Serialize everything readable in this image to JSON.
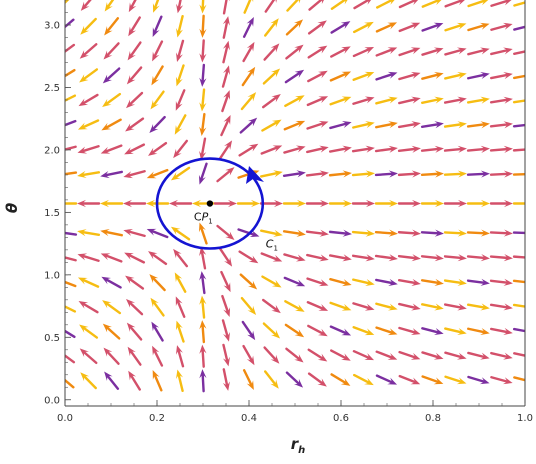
{
  "chart_data": {
    "type": "vector-field",
    "title": "",
    "xlabel_main": "r",
    "xlabel_sub": "h",
    "ylabel": "θ",
    "xlim": [
      0.0,
      1.0
    ],
    "ylim": [
      -0.05,
      3.2
    ],
    "x_ticks": [
      0.0,
      0.2,
      0.4,
      0.6,
      0.8,
      1.0
    ],
    "x_tick_labels": [
      "0.0",
      "0.2",
      "0.4",
      "0.6",
      "0.8",
      "1.0"
    ],
    "y_ticks": [
      0.0,
      0.5,
      1.0,
      1.5,
      2.0,
      2.5,
      3.0
    ],
    "y_tick_labels": [
      "0.0",
      "0.5",
      "1.0",
      "1.5",
      "2.0",
      "2.5",
      "3.0"
    ],
    "critical_point": {
      "x": 0.315,
      "theta": 1.5708,
      "label_prefix": "C",
      "label_main": "P",
      "label_sub": "1"
    },
    "contour": {
      "label_main": "C",
      "label_sub": "1",
      "center": [
        0.315,
        1.5708
      ],
      "radius_x": 0.115,
      "radius_theta": 0.36,
      "color": "#1414d2"
    },
    "field": {
      "x_samples": [
        0.0,
        0.05,
        0.1,
        0.15,
        0.2,
        0.25,
        0.3,
        0.35,
        0.4,
        0.45,
        0.5,
        0.55,
        0.6,
        0.65,
        0.7,
        0.75,
        0.8,
        0.85,
        0.9,
        0.95,
        1.0
      ],
      "theta_samples": [
        0.157,
        0.353,
        0.55,
        0.746,
        0.942,
        1.139,
        1.335,
        1.571,
        1.806,
        2.003,
        2.199,
        2.395,
        2.592,
        2.788,
        2.985,
        3.18
      ],
      "colors": [
        "#f08a10",
        "#d3506a",
        "#7b2fa0",
        "#f6bd12"
      ]
    }
  }
}
